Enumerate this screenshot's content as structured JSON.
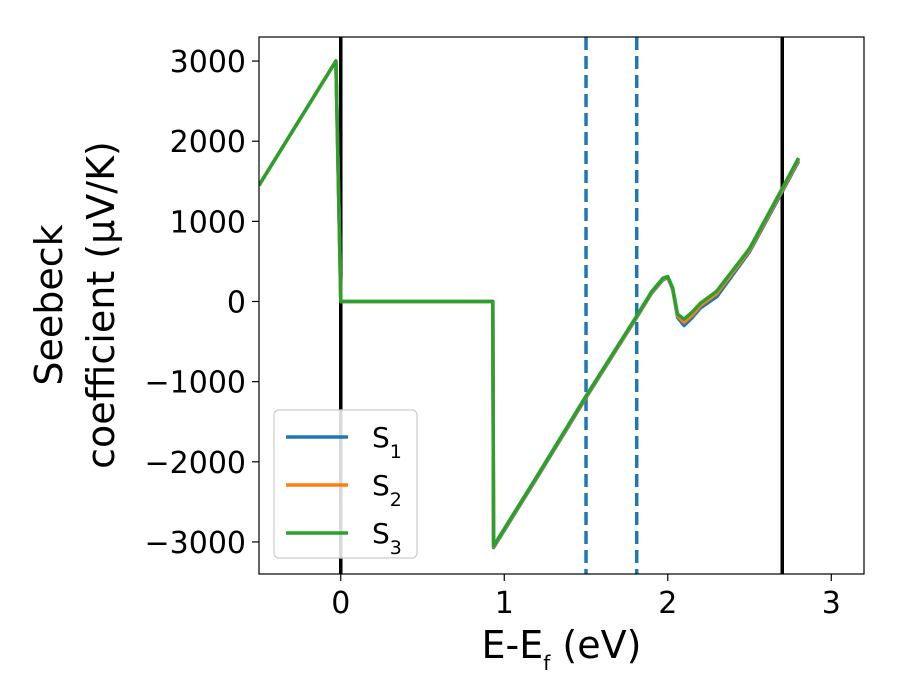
{
  "chart_data": {
    "type": "line",
    "title": "",
    "xlabel": {
      "main": "E-E",
      "sub": "f",
      "after": " (eV)"
    },
    "ylabel": {
      "line1": "Seebeck",
      "line2": "coefficient  (μV/K)"
    },
    "xlim": [
      -0.5,
      3.2
    ],
    "ylim": [
      -3400,
      3300
    ],
    "x_ticks": [
      0,
      1,
      2,
      3
    ],
    "y_ticks": [
      -3000,
      -2000,
      -1000,
      0,
      1000,
      2000,
      3000
    ],
    "y_tick_labels": [
      "−3000",
      "−2000",
      "−1000",
      "0",
      "1000",
      "2000",
      "3000"
    ],
    "grid": false,
    "legend_position": "lower-left",
    "vertical_lines": [
      {
        "x": 0.0,
        "style": "solid",
        "color": "#000000"
      },
      {
        "x": 2.7,
        "style": "solid",
        "color": "#000000"
      },
      {
        "x": 1.5,
        "style": "dashed",
        "color": "#1f77b4"
      },
      {
        "x": 1.81,
        "style": "dashed",
        "color": "#1f77b4"
      }
    ],
    "series": [
      {
        "name": "S",
        "sub": "1",
        "color": "#1f77b4",
        "points": [
          [
            -0.5,
            1450
          ],
          [
            -0.03,
            3000
          ],
          [
            0.0,
            0
          ],
          [
            0.93,
            0
          ],
          [
            0.935,
            -3070
          ],
          [
            1.2,
            -2200
          ],
          [
            1.5,
            -1200
          ],
          [
            1.81,
            -200
          ],
          [
            1.9,
            100
          ],
          [
            1.97,
            270
          ],
          [
            2.0,
            300
          ],
          [
            2.03,
            150
          ],
          [
            2.06,
            -200
          ],
          [
            2.1,
            -300
          ],
          [
            2.15,
            -200
          ],
          [
            2.2,
            -80
          ],
          [
            2.3,
            60
          ],
          [
            2.5,
            620
          ],
          [
            2.7,
            1370
          ],
          [
            2.8,
            1750
          ]
        ]
      },
      {
        "name": "S",
        "sub": "2",
        "color": "#ff7f0e",
        "points": [
          [
            -0.5,
            1450
          ],
          [
            -0.03,
            3000
          ],
          [
            0.0,
            0
          ],
          [
            0.93,
            0
          ],
          [
            0.935,
            -3060
          ],
          [
            1.2,
            -2190
          ],
          [
            1.5,
            -1190
          ],
          [
            1.81,
            -190
          ],
          [
            1.9,
            110
          ],
          [
            1.97,
            280
          ],
          [
            2.0,
            305
          ],
          [
            2.03,
            160
          ],
          [
            2.06,
            -180
          ],
          [
            2.1,
            -260
          ],
          [
            2.15,
            -170
          ],
          [
            2.2,
            -50
          ],
          [
            2.3,
            100
          ],
          [
            2.5,
            640
          ],
          [
            2.7,
            1390
          ],
          [
            2.8,
            1770
          ]
        ]
      },
      {
        "name": "S",
        "sub": "3",
        "color": "#2ca02c",
        "points": [
          [
            -0.5,
            1450
          ],
          [
            -0.03,
            3000
          ],
          [
            0.0,
            0
          ],
          [
            0.93,
            0
          ],
          [
            0.935,
            -3050
          ],
          [
            1.2,
            -2180
          ],
          [
            1.5,
            -1180
          ],
          [
            1.81,
            -180
          ],
          [
            1.9,
            120
          ],
          [
            1.97,
            290
          ],
          [
            2.0,
            310
          ],
          [
            2.03,
            170
          ],
          [
            2.06,
            -160
          ],
          [
            2.1,
            -220
          ],
          [
            2.15,
            -130
          ],
          [
            2.2,
            -20
          ],
          [
            2.3,
            130
          ],
          [
            2.5,
            660
          ],
          [
            2.7,
            1410
          ],
          [
            2.8,
            1790
          ]
        ]
      }
    ]
  }
}
